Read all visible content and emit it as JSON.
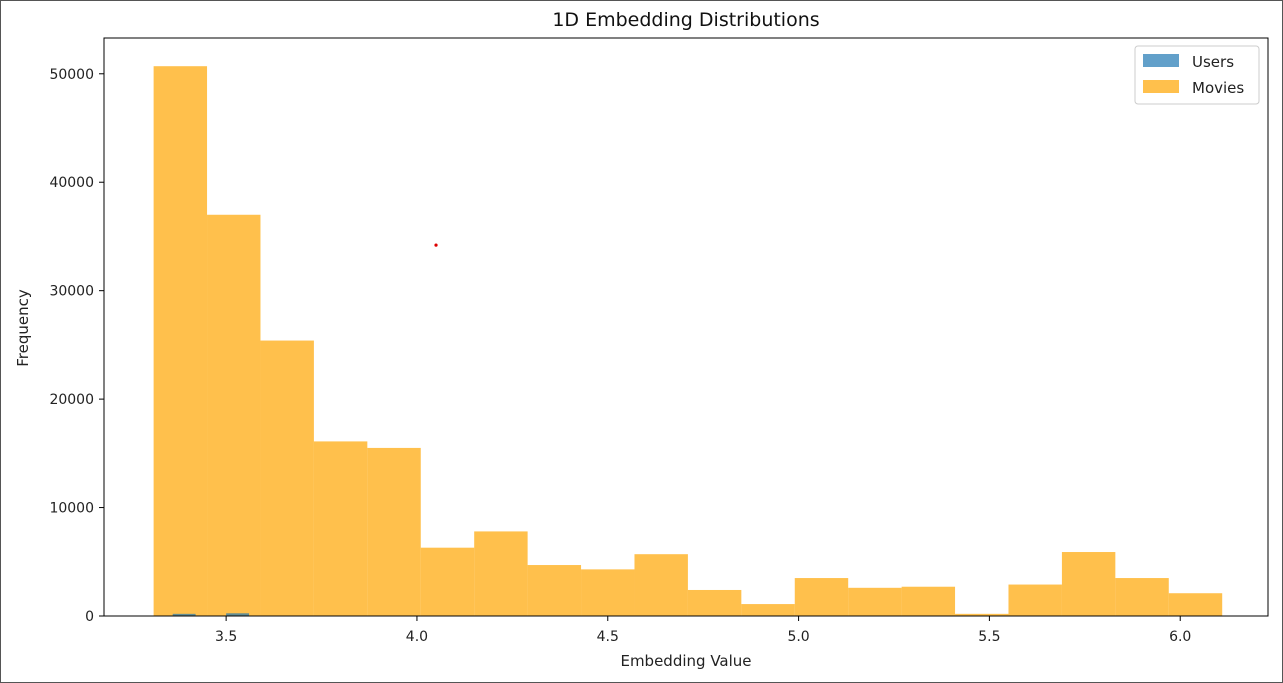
{
  "chart_data": {
    "type": "bar",
    "title": "1D Embedding Distributions",
    "xlabel": "Embedding Value",
    "ylabel": "Frequency",
    "xlim": [
      3.18,
      6.23
    ],
    "ylim": [
      0,
      53300
    ],
    "x_ticks": [
      3.5,
      4.0,
      4.5,
      5.0,
      5.5,
      6.0
    ],
    "x_tick_labels": [
      "3.5",
      "4.0",
      "4.5",
      "5.0",
      "5.5",
      "6.0"
    ],
    "y_ticks": [
      0,
      10000,
      20000,
      30000,
      40000,
      50000
    ],
    "y_tick_labels": [
      "0",
      "10000",
      "20000",
      "30000",
      "40000",
      "50000"
    ],
    "grid": false,
    "legend_position": "top-right",
    "series": [
      {
        "name": "Users",
        "color": "#1f77b4",
        "opacity": 0.7,
        "bins": [
          {
            "start": 3.36,
            "end": 3.42,
            "value": 200
          },
          {
            "start": 3.5,
            "end": 3.56,
            "value": 250
          }
        ]
      },
      {
        "name": "Movies",
        "color": "#ffa500",
        "opacity": 0.7,
        "bin_edges": [
          3.31,
          3.45,
          3.59,
          3.73,
          3.87,
          4.01,
          4.15,
          4.29,
          4.43,
          4.57,
          4.71,
          4.85,
          4.99,
          5.13,
          5.27,
          5.41,
          5.55,
          5.69,
          5.83,
          5.97,
          6.11
        ],
        "values": [
          50700,
          37000,
          25400,
          16100,
          15500,
          6300,
          7800,
          4700,
          4300,
          5700,
          2400,
          1100,
          3500,
          2600,
          2700,
          200,
          2900,
          5900,
          3500,
          2100
        ]
      }
    ],
    "annotations": [
      {
        "type": "marker",
        "x": 4.05,
        "y": 34200,
        "color": "#dd0000"
      }
    ]
  }
}
